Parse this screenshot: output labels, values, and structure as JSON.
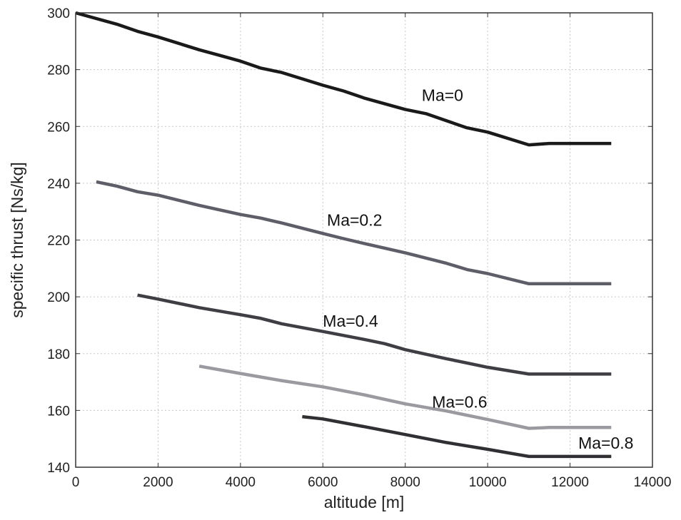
{
  "chart_data": {
    "type": "line",
    "title": "",
    "xlabel": "altitude [m]",
    "ylabel": "specific thrust [Ns/kg]",
    "xlim": [
      0,
      14000
    ],
    "ylim": [
      140,
      300
    ],
    "xticks": [
      0,
      2000,
      4000,
      6000,
      8000,
      10000,
      12000,
      14000
    ],
    "yticks": [
      140,
      160,
      180,
      200,
      220,
      240,
      260,
      280,
      300
    ],
    "x_tick_labels": [
      "0",
      "2000",
      "4000",
      "6000",
      "8000",
      "10000",
      "12000",
      "14000"
    ],
    "y_tick_labels": [
      "140",
      "160",
      "180",
      "200",
      "220",
      "240",
      "260",
      "280",
      "300"
    ],
    "grid": true,
    "legend": "none",
    "series": [
      {
        "name": "Ma=0",
        "color": "#1a1a1a",
        "label_at": [
          8400,
          269
        ],
        "x": [
          0,
          1000,
          1500,
          2000,
          3000,
          3500,
          4000,
          4500,
          5000,
          6000,
          6500,
          7000,
          8000,
          8500,
          9000,
          9500,
          10000,
          11000,
          11500,
          13000
        ],
        "y": [
          300,
          296,
          293.5,
          291.5,
          287,
          285,
          283,
          280.5,
          279,
          274.5,
          272.5,
          270,
          266,
          264.5,
          262,
          259.5,
          258,
          253.5,
          254,
          254
        ]
      },
      {
        "name": "Ma=0.2",
        "color": "#5e5e68",
        "label_at": [
          6100,
          225
        ],
        "x": [
          500,
          1000,
          1500,
          2000,
          3000,
          4000,
          4500,
          5000,
          6000,
          6500,
          7000,
          8000,
          9000,
          9500,
          10000,
          11000,
          11500,
          13000
        ],
        "y": [
          240.5,
          239,
          237,
          235.8,
          232.2,
          229,
          227.7,
          226,
          222.3,
          220.5,
          218.8,
          215.5,
          211.8,
          209.6,
          208.2,
          204.6,
          204.6,
          204.6
        ]
      },
      {
        "name": "Ma=0.4",
        "color": "#3e3e44",
        "label_at": [
          6000,
          189.5
        ],
        "x": [
          1500,
          2000,
          3000,
          4000,
          4500,
          5000,
          6000,
          7000,
          7500,
          8000,
          9000,
          10000,
          11000,
          13000
        ],
        "y": [
          200.6,
          199.2,
          196.2,
          193.7,
          192.4,
          190.5,
          187.8,
          185,
          183.5,
          181.4,
          178.2,
          175.2,
          172.8,
          172.8
        ]
      },
      {
        "name": "Ma=0.6",
        "color": "#9a9aa0",
        "label_at": [
          8650,
          161
        ],
        "x": [
          3000,
          4000,
          5000,
          6000,
          7000,
          8000,
          9000,
          10000,
          11000,
          11500,
          13000
        ],
        "y": [
          175.6,
          173,
          170.5,
          168.3,
          165.5,
          162.3,
          159.8,
          156.8,
          153.7,
          154,
          154
        ]
      },
      {
        "name": "Ma=0.8",
        "color": "#303034",
        "label_at": [
          12200,
          146.5
        ],
        "x": [
          5500,
          6000,
          7000,
          8000,
          9000,
          10000,
          11000,
          13000
        ],
        "y": [
          157.8,
          157,
          154.3,
          151.5,
          148.7,
          146.3,
          143.8,
          143.8
        ]
      }
    ]
  }
}
